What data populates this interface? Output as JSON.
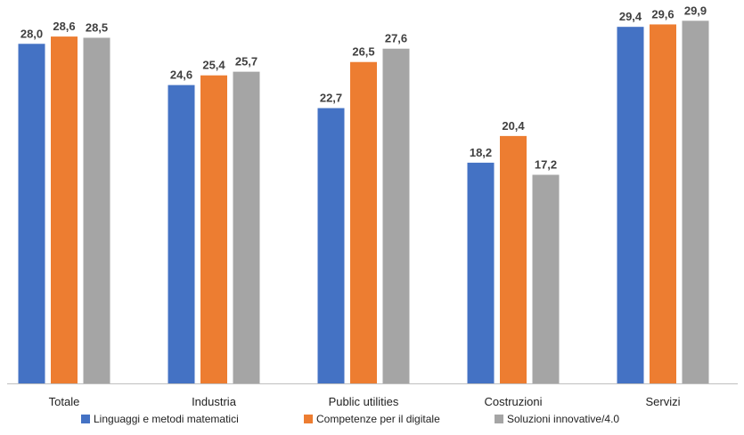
{
  "chart_data": {
    "type": "bar",
    "title": "",
    "xlabel": "",
    "ylabel": "",
    "categories": [
      "Totale",
      "Industria",
      "Public utilities",
      "Costruzioni",
      "Servizi"
    ],
    "series": [
      {
        "name": "Linguaggi e metodi matematici",
        "color": "#4472C4",
        "values": [
          28.0,
          24.6,
          22.7,
          18.2,
          29.4
        ],
        "labels": [
          "28,0",
          "24,6",
          "22,7",
          "18,2",
          "29,4"
        ]
      },
      {
        "name": "Competenze per il digitale",
        "color": "#ED7D31",
        "values": [
          28.6,
          25.4,
          26.5,
          20.4,
          29.6
        ],
        "labels": [
          "28,6",
          "25,4",
          "26,5",
          "20,4",
          "29,6"
        ]
      },
      {
        "name": "Soluzioni innovative/4.0",
        "color": "#A5A5A5",
        "values": [
          28.5,
          25.7,
          27.6,
          17.2,
          29.9
        ],
        "labels": [
          "28,5",
          "25,7",
          "27,6",
          "17,2",
          "29,9"
        ]
      }
    ],
    "ylim": [
      0,
      30
    ],
    "grid": false,
    "legend_position": "bottom"
  }
}
